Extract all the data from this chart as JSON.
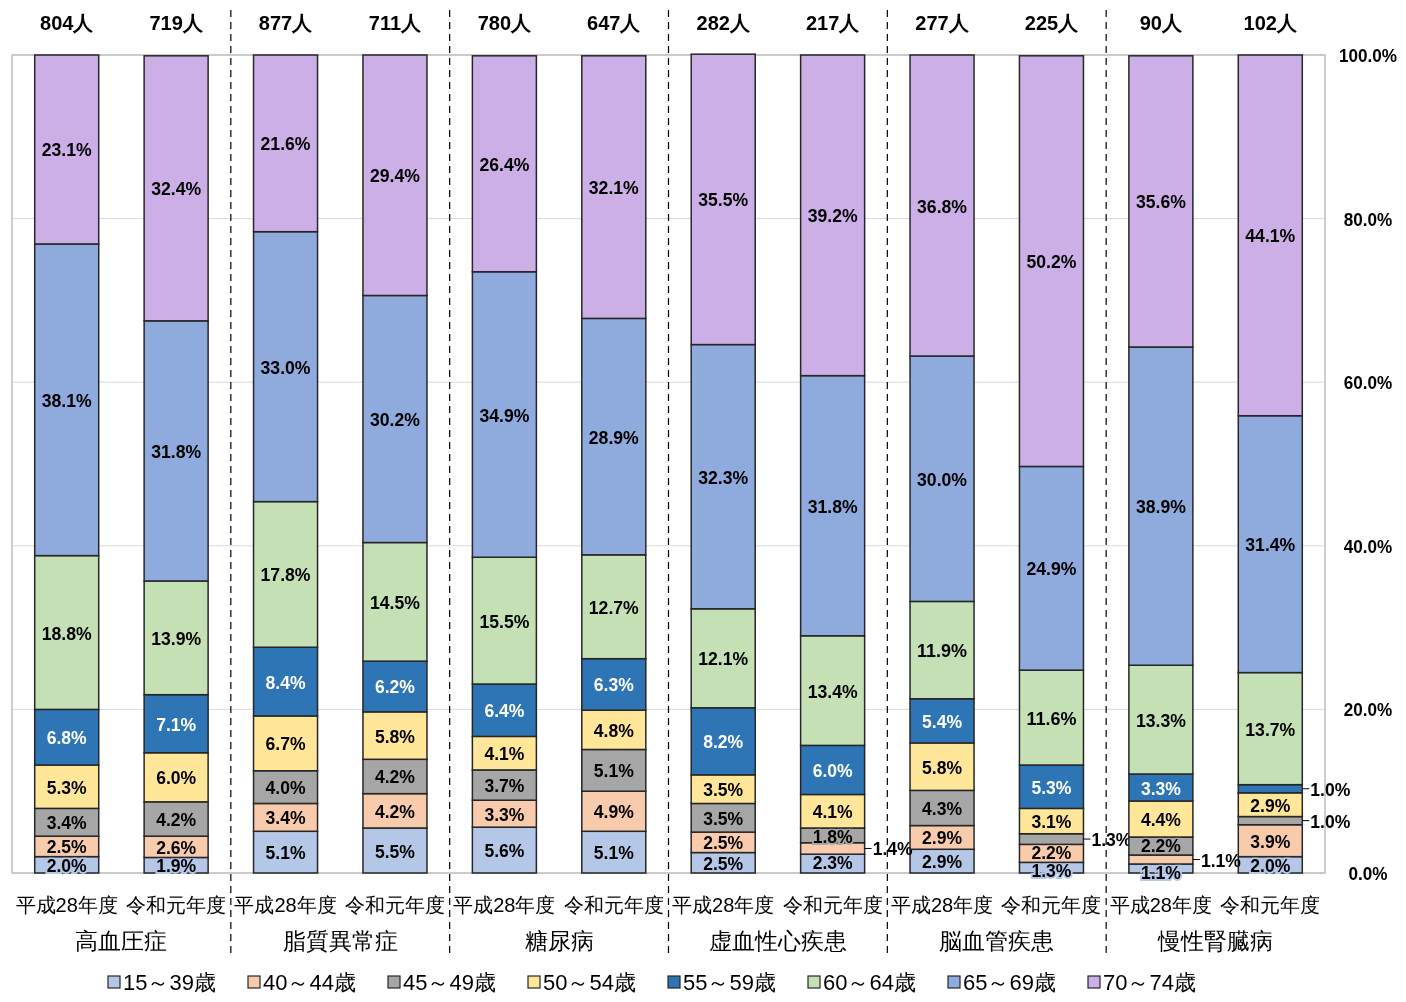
{
  "chart_data": {
    "type": "bar",
    "stacked": true,
    "categories": [
      "平成28年度",
      "令和元年度",
      "平成28年度",
      "令和元年度",
      "平成28年度",
      "令和元年度",
      "平成28年度",
      "令和元年度",
      "平成28年度",
      "令和元年度",
      "平成28年度",
      "令和元年度"
    ],
    "series": [
      {
        "name": "15～39歳",
        "color": "#b4c7e7",
        "values": [
          2.0,
          1.9,
          5.1,
          5.5,
          5.6,
          5.1,
          2.5,
          2.3,
          2.9,
          1.3,
          1.1,
          2.0
        ],
        "value_labels": [
          "2.0%",
          "1.9%",
          "5.1%",
          "5.5%",
          "5.6%",
          "5.1%",
          "2.5%",
          "2.3%",
          "2.9%",
          "1.3%",
          "1.1%",
          "2.0%"
        ]
      },
      {
        "name": "40～44歳",
        "color": "#f8cbad",
        "values": [
          2.5,
          2.6,
          3.4,
          4.2,
          3.3,
          4.9,
          2.5,
          1.4,
          2.9,
          2.2,
          1.1,
          3.9
        ],
        "value_labels": [
          "2.5%",
          "2.6%",
          "3.4%",
          "4.2%",
          "3.3%",
          "4.9%",
          "2.5%",
          "1.4%",
          "2.9%",
          "2.2%",
          "1.1%",
          "3.9%"
        ]
      },
      {
        "name": "45～49歳",
        "color": "#a6a6a6",
        "values": [
          3.4,
          4.2,
          4.0,
          4.2,
          3.7,
          5.1,
          3.5,
          1.8,
          4.3,
          1.3,
          2.2,
          1.0
        ],
        "value_labels": [
          "3.4%",
          "4.2%",
          "4.0%",
          "4.2%",
          "3.7%",
          "5.1%",
          "3.5%",
          "1.8%",
          "4.3%",
          "1.3%",
          "2.2%",
          "1.0%"
        ]
      },
      {
        "name": "50～54歳",
        "color": "#ffe699",
        "values": [
          5.3,
          6.0,
          6.7,
          5.8,
          4.1,
          4.8,
          3.5,
          4.1,
          5.8,
          3.1,
          4.4,
          2.9
        ],
        "value_labels": [
          "5.3%",
          "6.0%",
          "6.7%",
          "5.8%",
          "4.1%",
          "4.8%",
          "3.5%",
          "4.1%",
          "5.8%",
          "3.1%",
          "4.4%",
          "2.9%"
        ]
      },
      {
        "name": "55～59歳",
        "color": "#2e75b6",
        "values": [
          6.8,
          7.1,
          8.4,
          6.2,
          6.4,
          6.3,
          8.2,
          6.0,
          5.4,
          5.3,
          3.3,
          1.0
        ],
        "value_labels": [
          "6.8%",
          "7.1%",
          "8.4%",
          "6.2%",
          "6.4%",
          "6.3%",
          "8.2%",
          "6.0%",
          "5.4%",
          "5.3%",
          "3.3%",
          "1.0%"
        ]
      },
      {
        "name": "60～64歳",
        "color": "#c5e0b4",
        "values": [
          18.8,
          13.9,
          17.8,
          14.5,
          15.5,
          12.7,
          12.1,
          13.4,
          11.9,
          11.6,
          13.3,
          13.7
        ],
        "value_labels": [
          "18.8%",
          "13.9%",
          "17.8%",
          "14.5%",
          "15.5%",
          "12.7%",
          "12.1%",
          "13.4%",
          "11.9%",
          "11.6%",
          "13.3%",
          "13.7%"
        ]
      },
      {
        "name": "65～69歳",
        "color": "#8faadc",
        "values": [
          38.1,
          31.8,
          33.0,
          30.2,
          34.9,
          28.9,
          32.3,
          31.8,
          30.0,
          24.9,
          38.9,
          31.4
        ],
        "value_labels": [
          "38.1%",
          "31.8%",
          "33.0%",
          "30.2%",
          "34.9%",
          "28.9%",
          "32.3%",
          "31.8%",
          "30.0%",
          "24.9%",
          "38.9%",
          "31.4%"
        ]
      },
      {
        "name": "70～74歳",
        "color": "#cdafe8",
        "values": [
          23.1,
          32.4,
          21.6,
          29.4,
          26.4,
          32.1,
          35.5,
          39.2,
          36.8,
          50.2,
          35.6,
          44.1
        ],
        "value_labels": [
          "23.1%",
          "32.4%",
          "21.6%",
          "29.4%",
          "26.4%",
          "32.1%",
          "35.5%",
          "39.2%",
          "36.8%",
          "50.2%",
          "35.6%",
          "44.1%"
        ]
      }
    ],
    "annotations": [
      "804人",
      "719人",
      "877人",
      "711人",
      "780人",
      "647人",
      "282人",
      "217人",
      "277人",
      "225人",
      "90人",
      "102人",
      "高血圧症",
      "脂質異常症",
      "糖尿病",
      "虚血性心疾患",
      "脳血管疾患",
      "慢性腎臓病"
    ],
    "ylim": [
      0,
      100
    ],
    "yticks": [
      {
        "value": 0,
        "label": "0.0%"
      },
      {
        "value": 20,
        "label": "20.0%"
      },
      {
        "value": 40,
        "label": "40.0%"
      },
      {
        "value": 60,
        "label": "60.0%"
      },
      {
        "value": 80,
        "label": "80.0%"
      },
      {
        "value": 100,
        "label": "100.0%"
      }
    ],
    "grid": "y",
    "legend": "bottom"
  }
}
